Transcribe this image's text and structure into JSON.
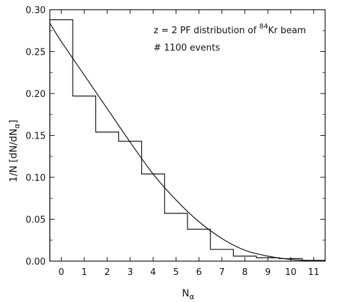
{
  "chart_data": {
    "type": "bar",
    "histogram": {
      "x": [
        0,
        1,
        2,
        3,
        4,
        5,
        6,
        7,
        8,
        9,
        10,
        11
      ],
      "values": [
        0.288,
        0.197,
        0.154,
        0.143,
        0.104,
        0.057,
        0.038,
        0.014,
        0.006,
        0.004,
        0.003,
        0.001
      ]
    },
    "fit_curve": {
      "x": [
        -0.5,
        0,
        1,
        2,
        3,
        4,
        5,
        6,
        7,
        8,
        9,
        10,
        11,
        11.5
      ],
      "values": [
        0.284,
        0.262,
        0.222,
        0.182,
        0.142,
        0.104,
        0.073,
        0.047,
        0.027,
        0.013,
        0.006,
        0.002,
        0.0005,
        0.0
      ]
    },
    "xlabel": "N",
    "xlabel_sub": "α",
    "ylabel": "1/N [dN/dN",
    "ylabel_sub": "α",
    "ylabel_end": "]",
    "xlim": [
      -0.5,
      11.5
    ],
    "ylim": [
      0,
      0.3
    ],
    "xticks": [
      "0",
      "1",
      "2",
      "3",
      "4",
      "5",
      "6",
      "7",
      "8",
      "9",
      "10",
      "11"
    ],
    "yticks": [
      "0.00",
      "0.05",
      "0.10",
      "0.15",
      "0.20",
      "0.25",
      "0.30"
    ],
    "grid": false,
    "annotation": {
      "line1_pre": "z = 2 PF distribution of ",
      "line1_sup": "84",
      "line1_post": "Kr beam",
      "line2": "# 1100 events"
    }
  }
}
